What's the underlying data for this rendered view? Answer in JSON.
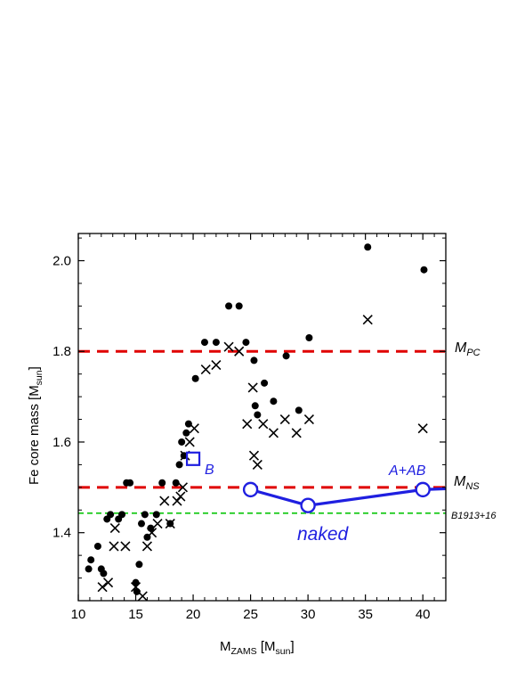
{
  "chart_data": {
    "type": "scatter",
    "xlabel": {
      "main": "M",
      "sub": "ZAMS",
      "unit_open": " [M",
      "unit_sub": "sun",
      "unit_close": "]"
    },
    "ylabel": {
      "main": "Fe core mass [M",
      "sub": "sun",
      "close": "]"
    },
    "xlim": [
      10,
      42
    ],
    "ylim": [
      1.25,
      2.06
    ],
    "x_ticks": [
      "10",
      "15",
      "20",
      "25",
      "30",
      "35",
      "40"
    ],
    "y_ticks": [
      "1.4",
      "1.6",
      "1.8",
      "2.0"
    ],
    "reference_lines": [
      {
        "y": 1.8,
        "label": "M",
        "label_sub": "PC",
        "color": "#e00000",
        "style": "dashed"
      },
      {
        "y": 1.5,
        "label": "M",
        "label_sub": "NS",
        "color": "#e00000",
        "style": "dashed"
      },
      {
        "y": 1.443,
        "label": "B1913+16",
        "label_sub": "",
        "color": "#22cc22",
        "style": "dashed"
      }
    ],
    "series": [
      {
        "marker": "dot",
        "color": "#000000",
        "points": [
          [
            10.9,
            1.32
          ],
          [
            11.1,
            1.34
          ],
          [
            11.7,
            1.37
          ],
          [
            12.0,
            1.32
          ],
          [
            12.2,
            1.31
          ],
          [
            12.5,
            1.43
          ],
          [
            12.8,
            1.44
          ],
          [
            13.5,
            1.43
          ],
          [
            13.8,
            1.44
          ],
          [
            14.2,
            1.51
          ],
          [
            14.5,
            1.51
          ],
          [
            15.0,
            1.29
          ],
          [
            15.1,
            1.27
          ],
          [
            15.3,
            1.33
          ],
          [
            15.5,
            1.42
          ],
          [
            15.8,
            1.44
          ],
          [
            16.0,
            1.39
          ],
          [
            16.3,
            1.41
          ],
          [
            16.8,
            1.44
          ],
          [
            17.3,
            1.51
          ],
          [
            18.0,
            1.42
          ],
          [
            18.5,
            1.51
          ],
          [
            18.8,
            1.55
          ],
          [
            19.0,
            1.6
          ],
          [
            19.2,
            1.57
          ],
          [
            19.4,
            1.62
          ],
          [
            19.6,
            1.64
          ],
          [
            20.2,
            1.74
          ],
          [
            21.0,
            1.82
          ],
          [
            22.0,
            1.82
          ],
          [
            23.1,
            1.9
          ],
          [
            24.0,
            1.9
          ],
          [
            24.6,
            1.82
          ],
          [
            25.3,
            1.78
          ],
          [
            25.4,
            1.68
          ],
          [
            25.6,
            1.66
          ],
          [
            26.2,
            1.73
          ],
          [
            27.0,
            1.69
          ],
          [
            28.1,
            1.79
          ],
          [
            29.2,
            1.67
          ],
          [
            30.1,
            1.83
          ],
          [
            35.2,
            2.03
          ],
          [
            40.1,
            1.98
          ]
        ]
      },
      {
        "marker": "cross",
        "color": "#000000",
        "points": [
          [
            12.1,
            1.28
          ],
          [
            12.6,
            1.29
          ],
          [
            13.1,
            1.37
          ],
          [
            13.2,
            1.41
          ],
          [
            14.1,
            1.37
          ],
          [
            15.0,
            1.28
          ],
          [
            15.6,
            1.26
          ],
          [
            16.0,
            1.37
          ],
          [
            16.4,
            1.4
          ],
          [
            16.9,
            1.42
          ],
          [
            17.5,
            1.47
          ],
          [
            18.0,
            1.42
          ],
          [
            18.6,
            1.47
          ],
          [
            18.9,
            1.48
          ],
          [
            19.1,
            1.5
          ],
          [
            19.3,
            1.57
          ],
          [
            19.7,
            1.6
          ],
          [
            20.1,
            1.63
          ],
          [
            21.1,
            1.76
          ],
          [
            22.0,
            1.77
          ],
          [
            23.1,
            1.81
          ],
          [
            24.0,
            1.8
          ],
          [
            24.7,
            1.64
          ],
          [
            25.2,
            1.72
          ],
          [
            25.3,
            1.57
          ],
          [
            25.6,
            1.55
          ],
          [
            26.1,
            1.64
          ],
          [
            27.0,
            1.62
          ],
          [
            28.0,
            1.65
          ],
          [
            29.0,
            1.62
          ],
          [
            30.1,
            1.65
          ],
          [
            35.2,
            1.87
          ],
          [
            40.0,
            1.63
          ]
        ]
      }
    ],
    "highlight": {
      "color": "#1f1fe0",
      "square": {
        "x": 20.0,
        "y": 1.563,
        "label": "B"
      },
      "naked_line": {
        "points": [
          [
            25,
            1.495
          ],
          [
            30,
            1.46
          ],
          [
            40,
            1.495
          ],
          [
            42,
            1.497
          ]
        ],
        "circles": [
          [
            25,
            1.495
          ],
          [
            30,
            1.46
          ],
          [
            40,
            1.495
          ]
        ]
      },
      "labels": {
        "naked": "naked",
        "a_ab": "A+AB"
      }
    }
  }
}
